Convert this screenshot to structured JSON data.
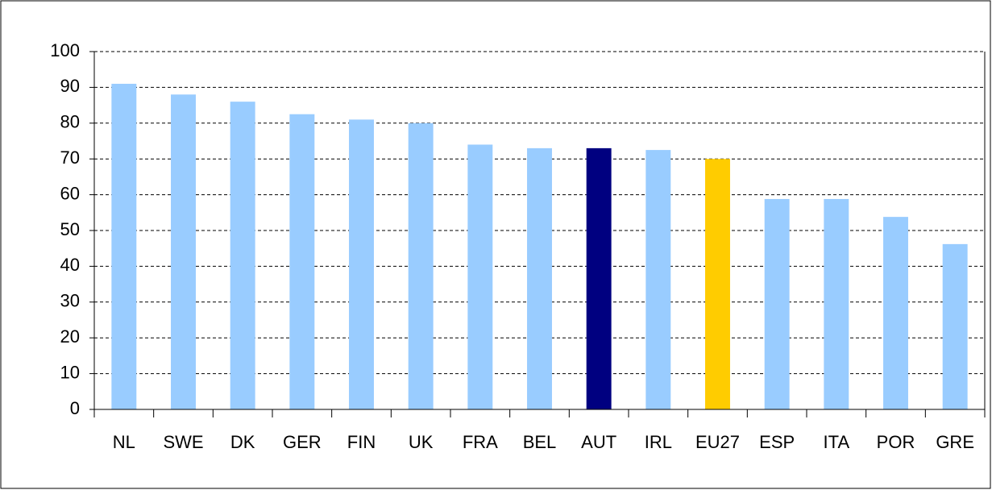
{
  "chart_data": {
    "type": "bar",
    "categories": [
      "NL",
      "SWE",
      "DK",
      "GER",
      "FIN",
      "UK",
      "FRA",
      "BEL",
      "AUT",
      "IRL",
      "EU27",
      "ESP",
      "ITA",
      "POR",
      "GRE"
    ],
    "values": [
      91,
      88,
      86,
      82.5,
      81,
      80,
      74,
      73,
      73,
      72.5,
      70,
      58.8,
      58.8,
      53.8,
      46.2
    ],
    "colors": [
      "#99ccff",
      "#99ccff",
      "#99ccff",
      "#99ccff",
      "#99ccff",
      "#99ccff",
      "#99ccff",
      "#99ccff",
      "#000080",
      "#99ccff",
      "#ffcc00",
      "#99ccff",
      "#99ccff",
      "#99ccff",
      "#99ccff"
    ],
    "ylim": [
      0,
      100
    ],
    "yticks": [
      0,
      10,
      20,
      30,
      40,
      50,
      60,
      70,
      80,
      90,
      100
    ],
    "grid": true
  }
}
